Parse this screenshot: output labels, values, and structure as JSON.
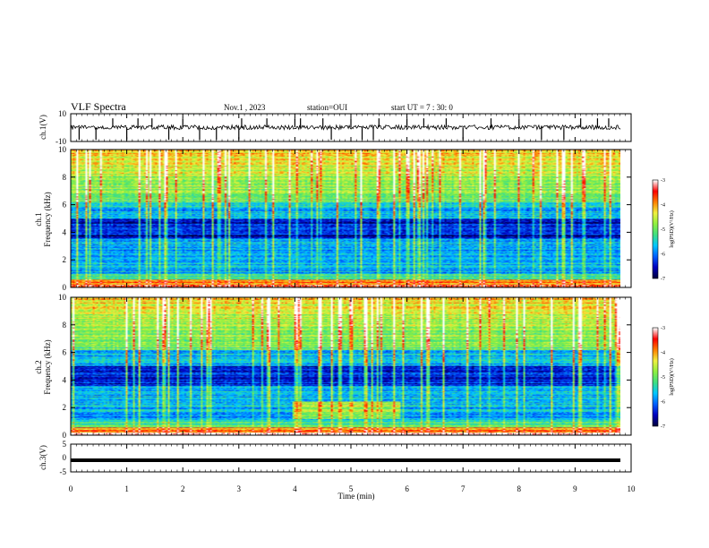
{
  "header": {
    "title": "VLF Spectra",
    "date": "Nov.1 , 2023",
    "station": "station=OUI",
    "start": "start UT = 7 : 30: 0"
  },
  "colors": {
    "colormap": [
      "#000040",
      "#0000c0",
      "#0060ff",
      "#00c8ff",
      "#40e080",
      "#90f040",
      "#f0f040",
      "#ff8000",
      "#ff0000",
      "#ffffff"
    ],
    "waveform": "#000000",
    "axis": "#000000"
  },
  "chart_data": [
    {
      "type": "line",
      "name": "ch1-waveform",
      "ylabel": "ch.1(V)",
      "ylim": [
        -10,
        10
      ],
      "yticks": [
        "10",
        "-10"
      ],
      "xlim": [
        0,
        10
      ],
      "signal_level": 0.2,
      "spikes_x": [
        0.15,
        0.45,
        0.75,
        1.0,
        1.2,
        1.45,
        1.75,
        2.0,
        2.3,
        2.6,
        3.0,
        3.05,
        3.5,
        4.0,
        4.1,
        4.5,
        4.65,
        5.0,
        5.2,
        5.4,
        5.5,
        6.0,
        6.3,
        6.7,
        7.0,
        7.5,
        8.0,
        8.4,
        8.8,
        9.1,
        9.4,
        9.6
      ]
    },
    {
      "type": "heatmap",
      "name": "ch1-spectrogram",
      "ylabel_1": "ch.1",
      "ylabel_2": "Frequency (kHz)",
      "ylim": [
        0,
        10
      ],
      "yticks": [
        "0",
        "2",
        "4",
        "6",
        "8",
        "10"
      ],
      "xlim": [
        0,
        10
      ],
      "colorbar": {
        "label": "log(PSD)(V²/Hz)",
        "range": [
          -7,
          -3
        ],
        "ticks": [
          "-3",
          "-4",
          "-5",
          "-6",
          "-7"
        ]
      }
    },
    {
      "type": "heatmap",
      "name": "ch2-spectrogram",
      "ylabel_1": "ch.2",
      "ylabel_2": "Frequency (kHz)",
      "ylim": [
        0,
        10
      ],
      "yticks": [
        "0",
        "2",
        "4",
        "6",
        "8",
        "10"
      ],
      "xlim": [
        0,
        10
      ],
      "colorbar": {
        "label": "log(PSD)(V²/Hz)",
        "range": [
          -7,
          -3
        ],
        "ticks": [
          "-3",
          "-4",
          "-5",
          "-6",
          "-7"
        ]
      }
    },
    {
      "type": "line",
      "name": "ch3-waveform",
      "ylabel": "ch.3(V)",
      "ylim": [
        -5,
        5
      ],
      "yticks": [
        "5",
        "0",
        "-5"
      ],
      "xlim": [
        0,
        10
      ],
      "signal_level": -0.8
    }
  ],
  "xaxis": {
    "label": "Time (min)",
    "ticks": [
      "0",
      "1",
      "2",
      "3",
      "4",
      "5",
      "6",
      "7",
      "8",
      "9",
      "10"
    ]
  }
}
